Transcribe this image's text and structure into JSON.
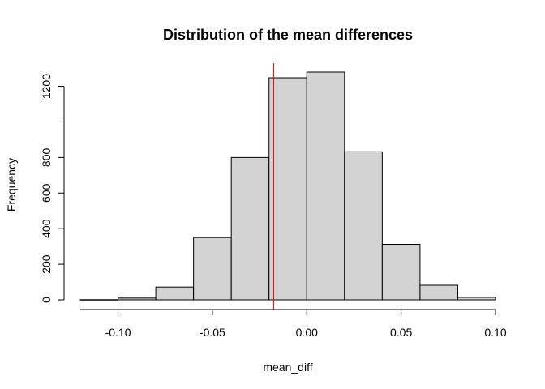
{
  "chart_data": {
    "type": "bar",
    "subtype": "histogram",
    "title": "Distribution of the mean differences",
    "xlabel": "mean_diff",
    "ylabel": "Frequency",
    "bins": [
      {
        "x0": -0.12,
        "x1": -0.1,
        "count": 1
      },
      {
        "x0": -0.1,
        "x1": -0.08,
        "count": 10
      },
      {
        "x0": -0.08,
        "x1": -0.06,
        "count": 72
      },
      {
        "x0": -0.06,
        "x1": -0.04,
        "count": 350
      },
      {
        "x0": -0.04,
        "x1": -0.02,
        "count": 800
      },
      {
        "x0": -0.02,
        "x1": 0.0,
        "count": 1248
      },
      {
        "x0": 0.0,
        "x1": 0.02,
        "count": 1280
      },
      {
        "x0": 0.02,
        "x1": 0.04,
        "count": 832
      },
      {
        "x0": 0.04,
        "x1": 0.06,
        "count": 312
      },
      {
        "x0": 0.06,
        "x1": 0.08,
        "count": 82
      },
      {
        "x0": 0.08,
        "x1": 0.1,
        "count": 14
      }
    ],
    "xlim": [
      -0.12,
      0.1
    ],
    "ylim": [
      0,
      1280
    ],
    "x_axis_range": [
      -0.12,
      0.1
    ],
    "y_axis_range": [
      0,
      1200
    ],
    "xticks": [
      -0.1,
      -0.05,
      0.0,
      0.05,
      0.1
    ],
    "xtick_labels": [
      "-0.10",
      "-0.05",
      "0.00",
      "0.05",
      "0.10"
    ],
    "yticks": [
      0,
      200,
      400,
      600,
      800,
      1000,
      1200
    ],
    "ytick_labels": [
      "0",
      "200",
      "400",
      "600",
      "800",
      "",
      "1200"
    ],
    "vline": {
      "x": -0.0175,
      "color": "#ff0000"
    },
    "bar_fill": "#d3d3d3",
    "bar_stroke": "#000000",
    "grid": false,
    "legend": "none"
  }
}
